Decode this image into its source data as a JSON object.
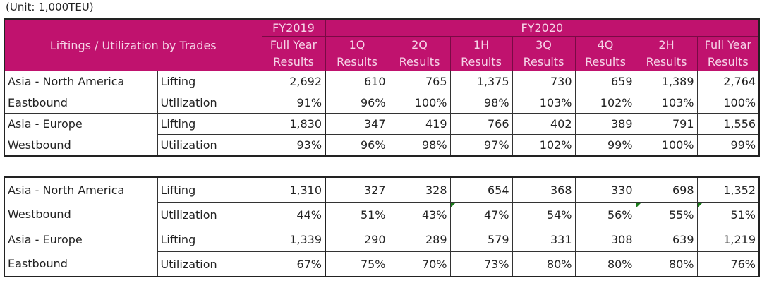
{
  "unit": "(Unit: 1,000TEU)",
  "header": {
    "title": "Liftings / Utilization by Trades",
    "fy2019": "FY2019",
    "fy2020": "FY2020",
    "columns": [
      "Full Year Results",
      "1Q Results",
      "2Q Results",
      "1H Results",
      "3Q Results",
      "4Q Results",
      "2H Results",
      "Full Year Results"
    ]
  },
  "colors": {
    "header_bg": "#c0126e",
    "header_text": "#f6d4e8",
    "marker": "#1a7a1a"
  },
  "table1": [
    {
      "trade_line1": "Asia - North America",
      "trade_line2": "Eastbound",
      "lifting": {
        "label": "Lifting",
        "values": [
          "2,692",
          "610",
          "765",
          "1,375",
          "730",
          "659",
          "1,389",
          "2,764"
        ]
      },
      "utilization": {
        "label": "Utilization",
        "values": [
          "91%",
          "96%",
          "100%",
          "98%",
          "103%",
          "102%",
          "103%",
          "100%"
        ]
      }
    },
    {
      "trade_line1": "Asia - Europe",
      "trade_line2": "Westbound",
      "lifting": {
        "label": "Lifting",
        "values": [
          "1,830",
          "347",
          "419",
          "766",
          "402",
          "389",
          "791",
          "1,556"
        ]
      },
      "utilization": {
        "label": "Utilization",
        "values": [
          "93%",
          "96%",
          "98%",
          "97%",
          "102%",
          "99%",
          "100%",
          "99%"
        ]
      }
    }
  ],
  "table2": [
    {
      "trade_line1": "Asia - North America",
      "trade_line2": "Westbound",
      "lifting": {
        "label": "Lifting",
        "values": [
          "1,310",
          "327",
          "328",
          "654",
          "368",
          "330",
          "698",
          "1,352"
        ]
      },
      "utilization": {
        "label": "Utilization",
        "values": [
          "44%",
          "51%",
          "43%",
          "47%",
          "54%",
          "56%",
          "55%",
          "51%"
        ]
      }
    },
    {
      "trade_line1": "Asia - Europe",
      "trade_line2": "Eastbound",
      "lifting": {
        "label": "Lifting",
        "values": [
          "1,339",
          "290",
          "289",
          "579",
          "331",
          "308",
          "639",
          "1,219"
        ]
      },
      "utilization": {
        "label": "Utilization",
        "values": [
          "67%",
          "75%",
          "70%",
          "73%",
          "80%",
          "80%",
          "80%",
          "76%"
        ]
      }
    }
  ]
}
